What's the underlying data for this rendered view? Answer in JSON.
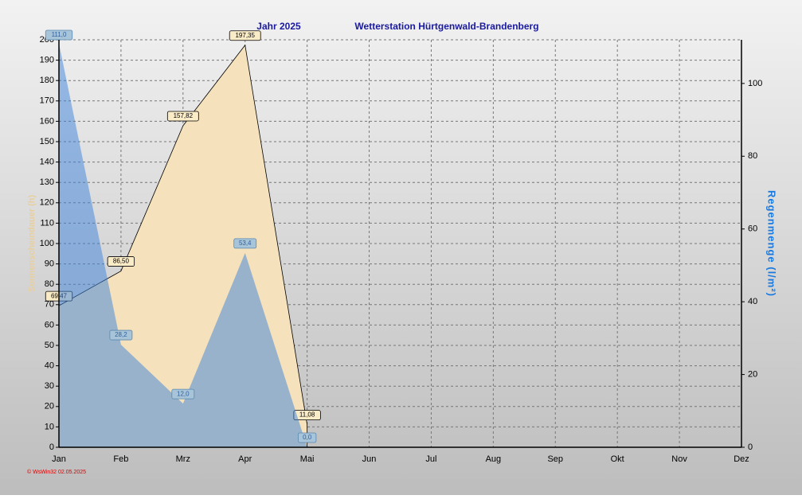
{
  "chart_data": {
    "type": "area",
    "title": "Jahr  2025",
    "subtitle": "Wetterstation Hürtgenwald-Brandenberg",
    "y_label": "Sonnenscheindauer (h)",
    "y2_label": "Regenmenge  (l/m²)",
    "footer": "© WsWin32  02.05.2025",
    "categories": [
      "Jan",
      "Feb",
      "Mrz",
      "Apr",
      "Mai",
      "Jun",
      "Jul",
      "Aug",
      "Sep",
      "Okt",
      "Nov",
      "Dez"
    ],
    "series": [
      {
        "color": "#f5e2bc",
        "values": [
          69.47,
          86.5,
          157.82,
          197.35,
          11.08,
          null,
          null,
          null,
          null,
          null,
          null,
          null
        ],
        "value_labels": [
          "69,47",
          "86,50",
          "157,82",
          "197,35",
          "11,08",
          null,
          null,
          null,
          null,
          null,
          null,
          null
        ]
      },
      {
        "color": "#3c82dc",
        "axis": "y2",
        "values": [
          111.0,
          28.2,
          12.0,
          53.4,
          0.0,
          null,
          null,
          null,
          null,
          null,
          null,
          null
        ],
        "value_labels": [
          "111,0",
          "28,2",
          "12,0",
          "53,4",
          "0,0",
          null,
          null,
          null,
          null,
          null,
          null,
          null
        ]
      }
    ],
    "ylim": [
      0,
      200
    ],
    "yticks": [
      0,
      10,
      20,
      30,
      40,
      50,
      60,
      70,
      80,
      90,
      100,
      110,
      120,
      130,
      140,
      150,
      160,
      170,
      180,
      190,
      200
    ],
    "y2lim": [
      0,
      112
    ],
    "y2ticks": [
      0,
      20,
      40,
      60,
      80,
      100
    ],
    "grid": true
  }
}
